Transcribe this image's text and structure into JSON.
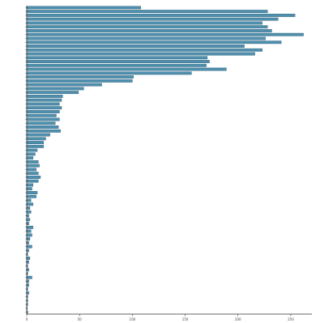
{
  "chart_data": {
    "type": "bar",
    "orientation": "horizontal",
    "title": "",
    "xlabel": "",
    "ylabel": "",
    "xlim": [
      0,
      270
    ],
    "x_ticks": [
      0,
      50,
      100,
      150,
      200,
      250
    ],
    "grid": false,
    "legend": "none",
    "bar_color": "#4f8fae",
    "bar_edge_color": "#2f5f76",
    "values": [
      108,
      228,
      254,
      238,
      223,
      228,
      232,
      262,
      226,
      241,
      206,
      223,
      216,
      171,
      173,
      170,
      189,
      156,
      101,
      100,
      71,
      54,
      49,
      34,
      33,
      31,
      33,
      31,
      28,
      31,
      27,
      30,
      32,
      22,
      18,
      16,
      16,
      10,
      8,
      6,
      11,
      12,
      9,
      11,
      13,
      11,
      6,
      5,
      10,
      9,
      4,
      6,
      3,
      4,
      2,
      3,
      2,
      6,
      4,
      5,
      3,
      2,
      5,
      2,
      1,
      3,
      2,
      1,
      2,
      1,
      5,
      2,
      2,
      1,
      2,
      1,
      1,
      1,
      0.5,
      1
    ]
  }
}
